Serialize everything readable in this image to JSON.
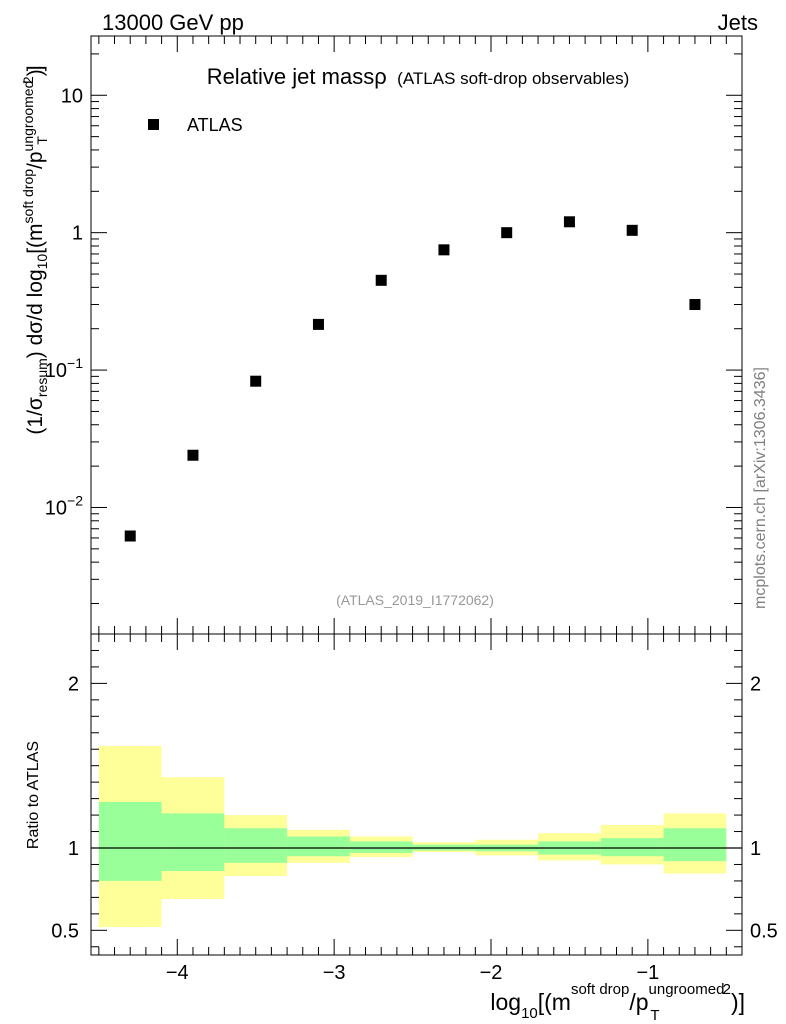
{
  "header": {
    "left": "13000 GeV pp",
    "right": "Jets"
  },
  "side_note": "mcplots.cern.ch [arXiv:1306.3436]",
  "watermark": "(ATLAS_2019_I1772062)",
  "colors": {
    "band_outer": "#ffff99",
    "band_inner": "#99ff99",
    "marker": "#000000"
  },
  "chart_data": [
    {
      "type": "scatter",
      "title": "Relative jet massρ",
      "subtitle": "(ATLAS soft-drop observables)",
      "ylabel": "(1/σresum) dσ/d log10[(m^soft drop/pT^ungroomed)^2]",
      "yscale": "log",
      "xlim": [
        -4.55,
        -0.4
      ],
      "ylim": [
        0.0012,
        27
      ],
      "y_ticks": [
        {
          "value": 0.01,
          "base": "10",
          "exp": "−2"
        },
        {
          "value": 0.1,
          "base": "10",
          "exp": "−1"
        },
        {
          "value": 1,
          "label": "1"
        },
        {
          "value": 10,
          "label": "10"
        }
      ],
      "legend_position": "top-left",
      "series": [
        {
          "name": "ATLAS",
          "x": [
            -4.3,
            -3.9,
            -3.5,
            -3.1,
            -2.7,
            -2.3,
            -1.9,
            -1.5,
            -1.1,
            -0.7
          ],
          "y": [
            0.0062,
            0.024,
            0.083,
            0.215,
            0.45,
            0.75,
            1.0,
            1.2,
            1.04,
            0.3
          ]
        }
      ]
    },
    {
      "type": "area",
      "ylabel": "Ratio to ATLAS",
      "xlabel": "log10[(m^soft drop/pT^ungroomed)^2]",
      "xlim": [
        -4.55,
        -0.4
      ],
      "ylim": [
        0.35,
        2.3
      ],
      "x_ticks": [
        "−4",
        "−3",
        "−2",
        "−1"
      ],
      "x_tick_values": [
        -4,
        -3,
        -2,
        -1
      ],
      "y_ticks": [
        "0.5",
        "1",
        "2"
      ],
      "y_tick_values": [
        0.5,
        1,
        2
      ],
      "bin_edges": [
        -4.5,
        -4.1,
        -3.7,
        -3.3,
        -2.9,
        -2.5,
        -2.1,
        -1.7,
        -1.3,
        -0.9,
        -0.5
      ],
      "bands": [
        {
          "level": "outer",
          "lower": [
            0.52,
            0.69,
            0.83,
            0.91,
            0.945,
            0.975,
            0.955,
            0.925,
            0.9,
            0.845
          ],
          "upper": [
            1.62,
            1.43,
            1.2,
            1.11,
            1.07,
            1.035,
            1.05,
            1.09,
            1.14,
            1.21
          ]
        },
        {
          "level": "inner",
          "lower": [
            0.8,
            0.86,
            0.91,
            0.95,
            0.97,
            0.985,
            0.98,
            0.96,
            0.95,
            0.92
          ],
          "upper": [
            1.28,
            1.21,
            1.12,
            1.07,
            1.04,
            1.02,
            1.02,
            1.04,
            1.06,
            1.12
          ]
        }
      ],
      "reference_line": 1
    }
  ]
}
